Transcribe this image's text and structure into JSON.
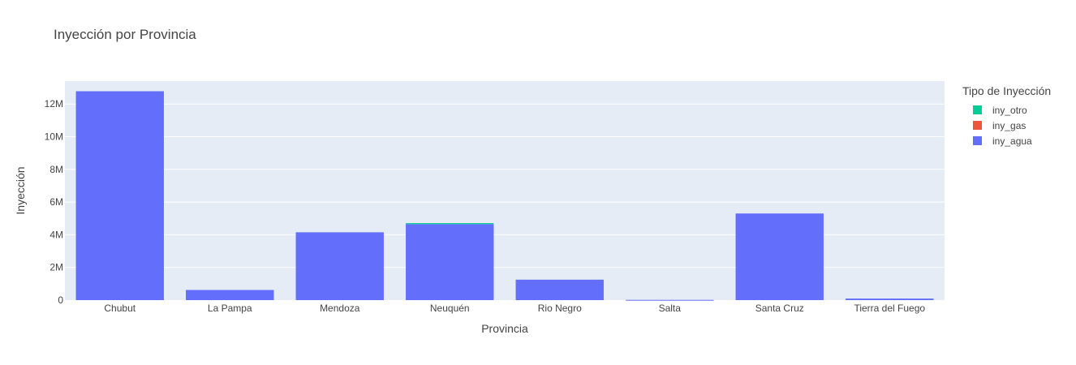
{
  "chart_data": {
    "type": "bar",
    "stacked": true,
    "title": "Inyección por Provincia",
    "xlabel": "Provincia",
    "ylabel": "Inyección",
    "ylim": [
      0,
      13400000
    ],
    "yticks": [
      0,
      2000000,
      4000000,
      6000000,
      8000000,
      10000000,
      12000000
    ],
    "ytick_labels": [
      "0",
      "2M",
      "4M",
      "6M",
      "8M",
      "10M",
      "12M"
    ],
    "grid": true,
    "legend_title": "Tipo de Inyección",
    "legend_position": "right",
    "categories": [
      "Chubut",
      "La Pampa",
      "Mendoza",
      "Neuquén",
      "Rio Negro",
      "Salta",
      "Santa Cruz",
      "Tierra del Fuego"
    ],
    "series": [
      {
        "name": "iny_agua",
        "color": "#636efa",
        "values": [
          12780000,
          620000,
          4150000,
          4650000,
          1250000,
          15000,
          5300000,
          95000
        ]
      },
      {
        "name": "iny_gas",
        "color": "#ef553b",
        "values": [
          0,
          0,
          0,
          0,
          0,
          0,
          0,
          0
        ]
      },
      {
        "name": "iny_otro",
        "color": "#00cc96",
        "values": [
          0,
          0,
          0,
          60000,
          0,
          0,
          0,
          0
        ]
      }
    ],
    "legend_order": [
      "iny_otro",
      "iny_gas",
      "iny_agua"
    ]
  }
}
